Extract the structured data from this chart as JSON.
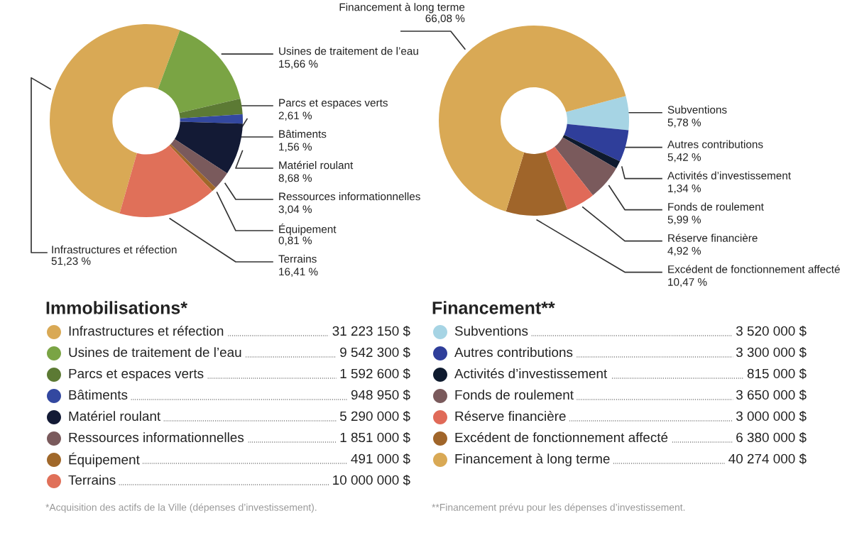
{
  "chart_data": [
    {
      "type": "donut",
      "title": "Immobilisations*",
      "legend": "bottom",
      "categories": [
        "Infrastructures et réfection",
        "Usines de traitement de l’eau",
        "Parcs et espaces verts",
        "Bâtiments",
        "Matériel roulant",
        "Ressources informationnelles",
        "Équipement",
        "Terrains"
      ],
      "values": [
        51.23,
        15.66,
        2.61,
        1.56,
        8.68,
        3.04,
        0.81,
        16.41
      ],
      "colors": [
        "#d9a955",
        "#7aa444",
        "#5c7a34",
        "#3348a0",
        "#131a35",
        "#7a5a5c",
        "#a0682a",
        "#e07059"
      ],
      "value_labels": [
        "51,23 %",
        "15,66 %",
        "2,61 %",
        "1,56 %",
        "8,68 %",
        "3,04 %",
        "0,81 %",
        "16,41 %"
      ],
      "annotations": [
        "31 223 150 $",
        "9 542 300 $",
        "1 592 600 $",
        "948 950 $",
        "5 290 000 $",
        "1 851 000 $",
        "491 000 $",
        "10 000 000 $",
        "*Acquisition des actifs de la Ville (dépenses d’investissement)."
      ]
    },
    {
      "type": "donut",
      "title": "Financement**",
      "legend": "bottom",
      "categories": [
        "Subventions",
        "Autres contributions",
        "Activités d’investissement",
        "Fonds de roulement",
        "Réserve financière",
        "Excédent de fonctionnement affecté",
        "Financement à long terme"
      ],
      "values": [
        5.78,
        5.42,
        1.34,
        5.99,
        4.92,
        10.47,
        66.08
      ],
      "colors": [
        "#a6d4e4",
        "#2f3e9a",
        "#0e1a2e",
        "#7a5a5c",
        "#e06a58",
        "#a0652a",
        "#d9a955"
      ],
      "value_labels": [
        "5,78 %",
        "5,42 %",
        "1,34 %",
        "5,99 %",
        "4,92 %",
        "10,47 %",
        "66,08 %"
      ],
      "annotations": [
        "3 520 000 $",
        "3 300 000 $",
        "815 000 $",
        "3 650 000 $",
        "3 000 000 $",
        "6 380 000 $",
        "40 274 000 $",
        "**Financement prévu pour les dépenses d’investissement."
      ]
    }
  ]
}
